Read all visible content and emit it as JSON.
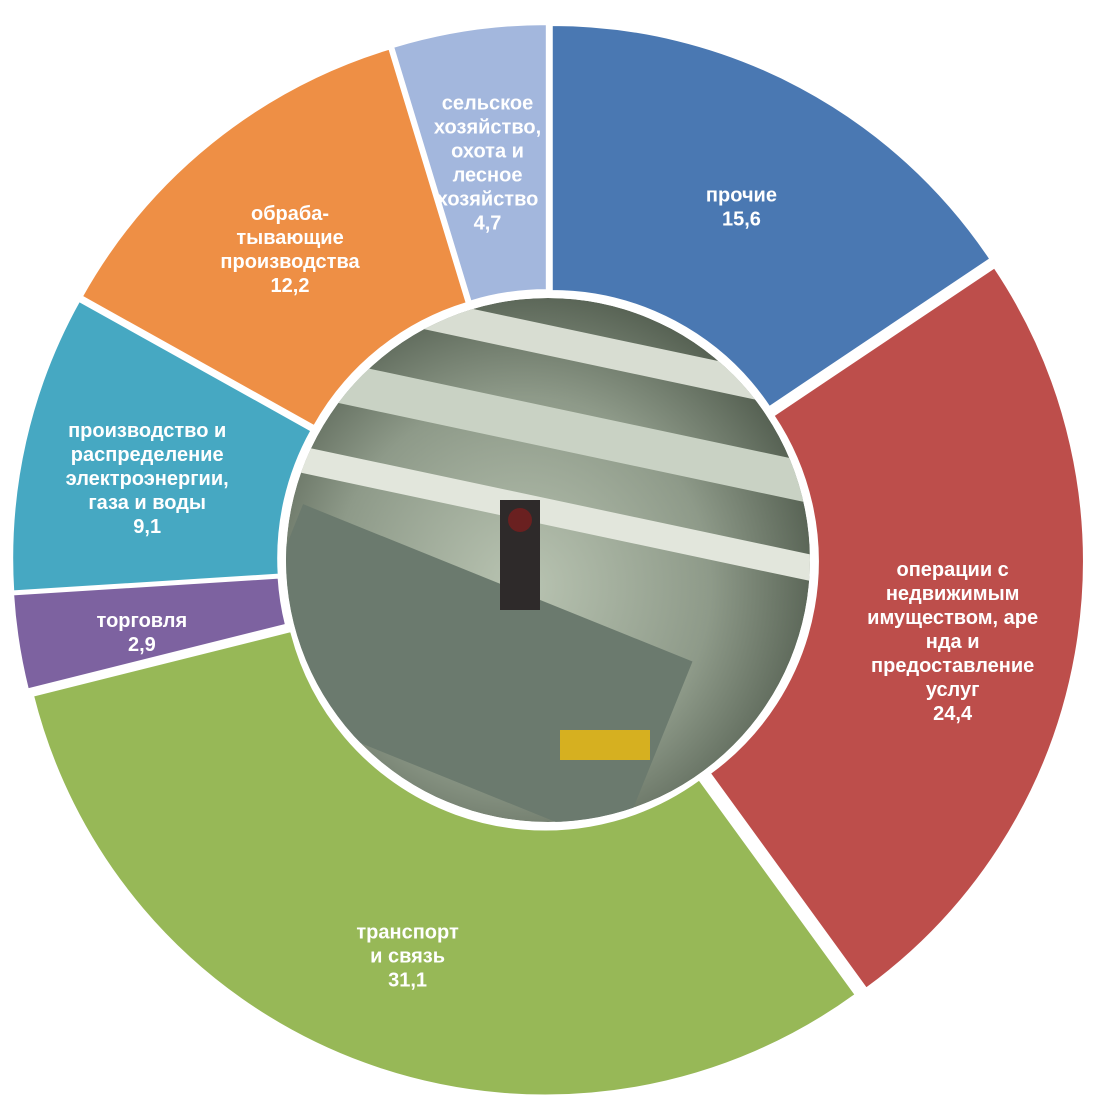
{
  "chart_data": {
    "type": "pie",
    "categories": [
      "прочие",
      "операции с\nнедвижимым\nимуществом, аре\nнда и\nпредоставление\nуслуг",
      "транспорт\nи связь",
      "торговля",
      "производство и\nраспределение\nэлектроэнергии,\nгаза и воды",
      "обраба-\nтывающие\nпроизводства",
      "сельское\nхозяйство,\nохота и\nлесное\nхозяйство"
    ],
    "values": [
      15.6,
      24.4,
      31.1,
      2.9,
      9.1,
      12.2,
      4.7
    ],
    "value_labels": [
      "15,6",
      "24,4",
      "31,1",
      "2,9",
      "9,1",
      "12,2",
      "4,7"
    ],
    "colors": [
      "#4a78b2",
      "#bd4e4b",
      "#97b857",
      "#7d62a0",
      "#46a8c2",
      "#ee8f45",
      "#a3b7dd"
    ]
  }
}
